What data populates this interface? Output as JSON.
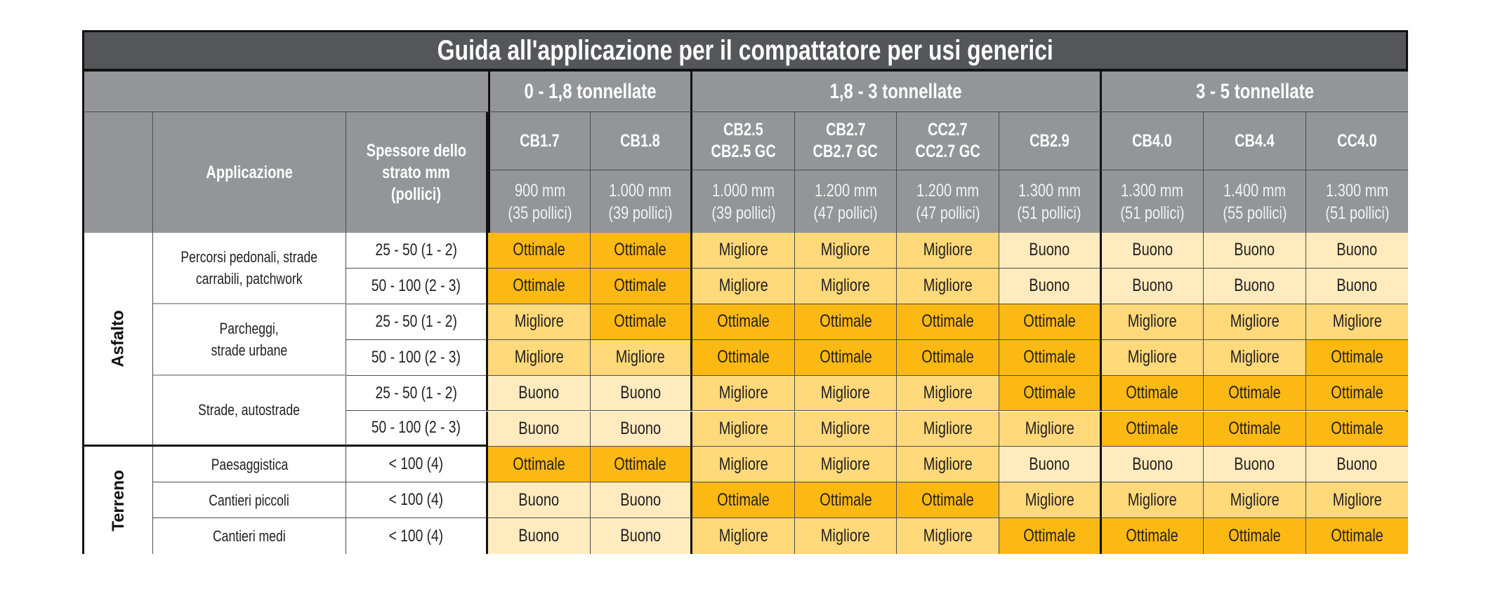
{
  "title": "Guida all'applicazione per il compattatore per usi generici",
  "colors": {
    "title_bg": "#55565a",
    "header_bg": "#939598",
    "Ottimale": "#fdb913",
    "Migliore": "#ffd97a",
    "Buono": "#ffebbe"
  },
  "headers": {
    "applicazione": "Applicazione",
    "spessore": "Spessore dello strato mm (pollici)",
    "spessore_lines": [
      "Spessore dello",
      "strato mm",
      "(pollici)"
    ],
    "groups": [
      {
        "label": "0 - 1,8 tonnellate",
        "span": 2
      },
      {
        "label": "1,8 - 3 tonnellate",
        "span": 4
      },
      {
        "label": "3 - 5 tonnellate",
        "span": 3
      }
    ],
    "models": [
      {
        "line1": "CB1.7",
        "line2": "",
        "dim": "900 mm",
        "inch": "(35 pollici)"
      },
      {
        "line1": "CB1.8",
        "line2": "",
        "dim": "1.000 mm",
        "inch": "(39 pollici)"
      },
      {
        "line1": "CB2.5",
        "line2": "CB2.5 GC",
        "dim": "1.000 mm",
        "inch": "(39 pollici)"
      },
      {
        "line1": "CB2.7",
        "line2": "CB2.7 GC",
        "dim": "1.200 mm",
        "inch": "(47 pollici)"
      },
      {
        "line1": "CC2.7",
        "line2": "CC2.7 GC",
        "dim": "1.200 mm",
        "inch": "(47 pollici)"
      },
      {
        "line1": "CB2.9",
        "line2": "",
        "dim": "1.300 mm",
        "inch": "(51 pollici)"
      },
      {
        "line1": "CB4.0",
        "line2": "",
        "dim": "1.300 mm",
        "inch": "(51 pollici)"
      },
      {
        "line1": "CB4.4",
        "line2": "",
        "dim": "1.400 mm",
        "inch": "(55 pollici)"
      },
      {
        "line1": "CC4.0",
        "line2": "",
        "dim": "1.300 mm",
        "inch": "(51 pollici)"
      }
    ]
  },
  "categories": [
    {
      "label": "Asfalto",
      "rows": 6
    },
    {
      "label": "Terreno",
      "rows": 3
    }
  ],
  "applications": [
    {
      "lines": [
        "Percorsi pedonali, strade",
        "carrabili, patchwork"
      ],
      "rows": 2
    },
    {
      "lines": [
        "Parcheggi,",
        "strade urbane"
      ],
      "rows": 2
    },
    {
      "lines": [
        "Strade, autostrade"
      ],
      "rows": 2
    },
    {
      "lines": [
        "Paesaggistica"
      ],
      "rows": 1
    },
    {
      "lines": [
        "Cantieri piccoli"
      ],
      "rows": 1
    },
    {
      "lines": [
        "Cantieri medi"
      ],
      "rows": 1
    }
  ],
  "rows": [
    {
      "thickness": "25 - 50 (1 - 2)",
      "values": [
        "Ottimale",
        "Ottimale",
        "Migliore",
        "Migliore",
        "Migliore",
        "Buono",
        "Buono",
        "Buono",
        "Buono"
      ]
    },
    {
      "thickness": "50 - 100 (2 - 3)",
      "values": [
        "Ottimale",
        "Ottimale",
        "Migliore",
        "Migliore",
        "Migliore",
        "Buono",
        "Buono",
        "Buono",
        "Buono"
      ]
    },
    {
      "thickness": "25 - 50 (1 - 2)",
      "values": [
        "Migliore",
        "Ottimale",
        "Ottimale",
        "Ottimale",
        "Ottimale",
        "Ottimale",
        "Migliore",
        "Migliore",
        "Migliore"
      ]
    },
    {
      "thickness": "50 - 100 (2 - 3)",
      "values": [
        "Migliore",
        "Migliore",
        "Ottimale",
        "Ottimale",
        "Ottimale",
        "Ottimale",
        "Migliore",
        "Migliore",
        "Ottimale"
      ]
    },
    {
      "thickness": "25 - 50 (1 - 2)",
      "values": [
        "Buono",
        "Buono",
        "Migliore",
        "Migliore",
        "Migliore",
        "Ottimale",
        "Ottimale",
        "Ottimale",
        "Ottimale"
      ]
    },
    {
      "thickness": "50 - 100 (2 - 3)",
      "values": [
        "Buono",
        "Buono",
        "Migliore",
        "Migliore",
        "Migliore",
        "Migliore",
        "Ottimale",
        "Ottimale",
        "Ottimale"
      ]
    },
    {
      "thickness": "< 100 (4)",
      "values": [
        "Ottimale",
        "Ottimale",
        "Migliore",
        "Migliore",
        "Migliore",
        "Buono",
        "Buono",
        "Buono",
        "Buono"
      ]
    },
    {
      "thickness": "< 100 (4)",
      "values": [
        "Buono",
        "Buono",
        "Ottimale",
        "Ottimale",
        "Ottimale",
        "Migliore",
        "Migliore",
        "Migliore",
        "Migliore"
      ]
    },
    {
      "thickness": "< 100 (4)",
      "values": [
        "Buono",
        "Buono",
        "Migliore",
        "Migliore",
        "Migliore",
        "Ottimale",
        "Ottimale",
        "Ottimale",
        "Ottimale"
      ]
    }
  ]
}
